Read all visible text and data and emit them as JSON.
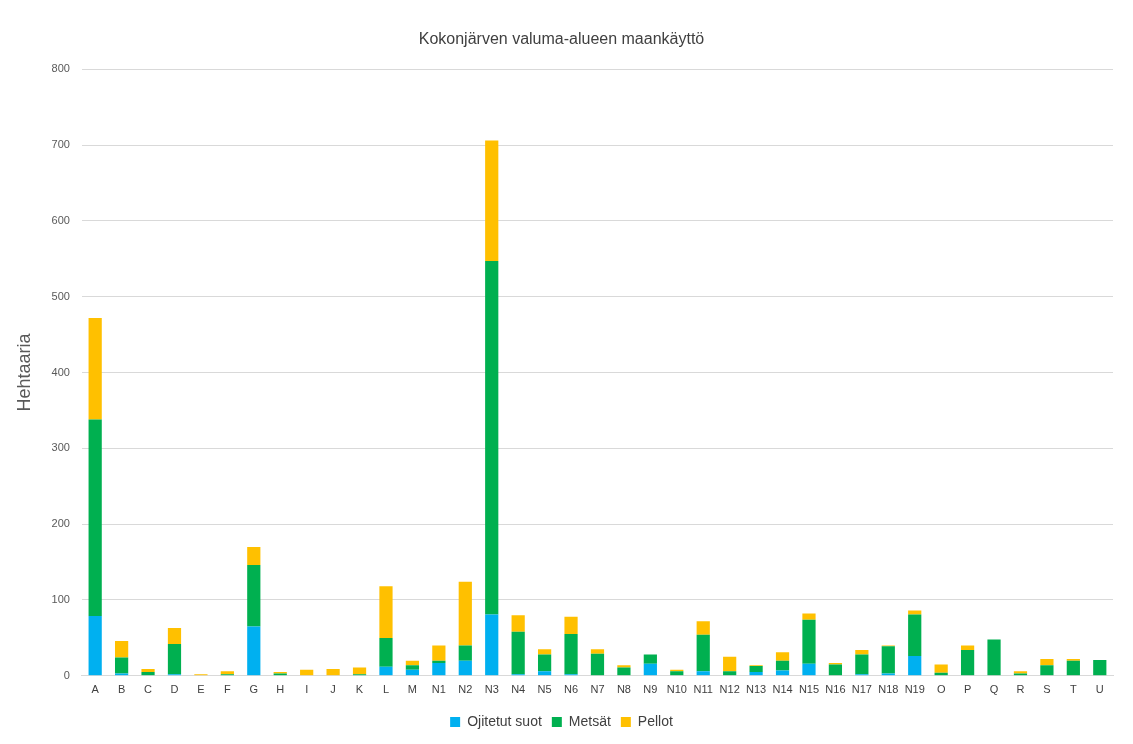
{
  "chart_data": {
    "type": "bar",
    "title": "Kokonjärven valuma-alueen maankäyttö",
    "ylabel": "Hehtaaria",
    "categories": [
      "A",
      "B",
      "C",
      "D",
      "E",
      "F",
      "G",
      "H",
      "I",
      "J",
      "K",
      "L",
      "M",
      "N1",
      "N2",
      "N3",
      "N4",
      "N5",
      "N6",
      "N7",
      "N8",
      "N9",
      "N10",
      "N11",
      "N12",
      "N13",
      "N14",
      "N15",
      "N16",
      "N17",
      "N18",
      "N19",
      "O",
      "P",
      "Q",
      "R",
      "S",
      "T",
      "U"
    ],
    "stacked": true,
    "ylim": [
      0,
      800
    ],
    "yticks": [
      0,
      100,
      200,
      300,
      400,
      500,
      600,
      700,
      800
    ],
    "grid": "y",
    "legend": "bottom",
    "series": [
      {
        "name": "Ojitetut suot",
        "color": "#00b0f0",
        "values": [
          79,
          3,
          0,
          2,
          0,
          0,
          65,
          0,
          0,
          0,
          0,
          12,
          8,
          17,
          20,
          81,
          2,
          6,
          2,
          0,
          0,
          16,
          0,
          6,
          0,
          5,
          7,
          16,
          0,
          2,
          3,
          26,
          0,
          0,
          0,
          0,
          0,
          0,
          0
        ]
      },
      {
        "name": "Metsät",
        "color": "#00b050",
        "values": [
          259,
          21,
          5,
          40,
          0,
          2,
          81,
          3,
          0,
          0,
          2,
          38,
          6,
          3,
          20,
          466,
          56,
          22,
          53,
          29,
          11,
          12,
          6,
          48,
          6,
          8,
          13,
          58,
          15,
          26,
          36,
          55,
          4,
          34,
          48,
          3,
          14,
          20,
          21
        ]
      },
      {
        "name": "Pellot",
        "color": "#ffc000",
        "values": [
          134,
          22,
          4,
          21,
          2,
          4,
          24,
          2,
          8,
          9,
          9,
          68,
          6,
          20,
          84,
          159,
          22,
          7,
          23,
          6,
          3,
          0,
          2,
          18,
          19,
          1,
          11,
          8,
          2,
          6,
          1,
          5,
          11,
          6,
          0,
          3,
          8,
          2,
          0
        ]
      }
    ]
  }
}
